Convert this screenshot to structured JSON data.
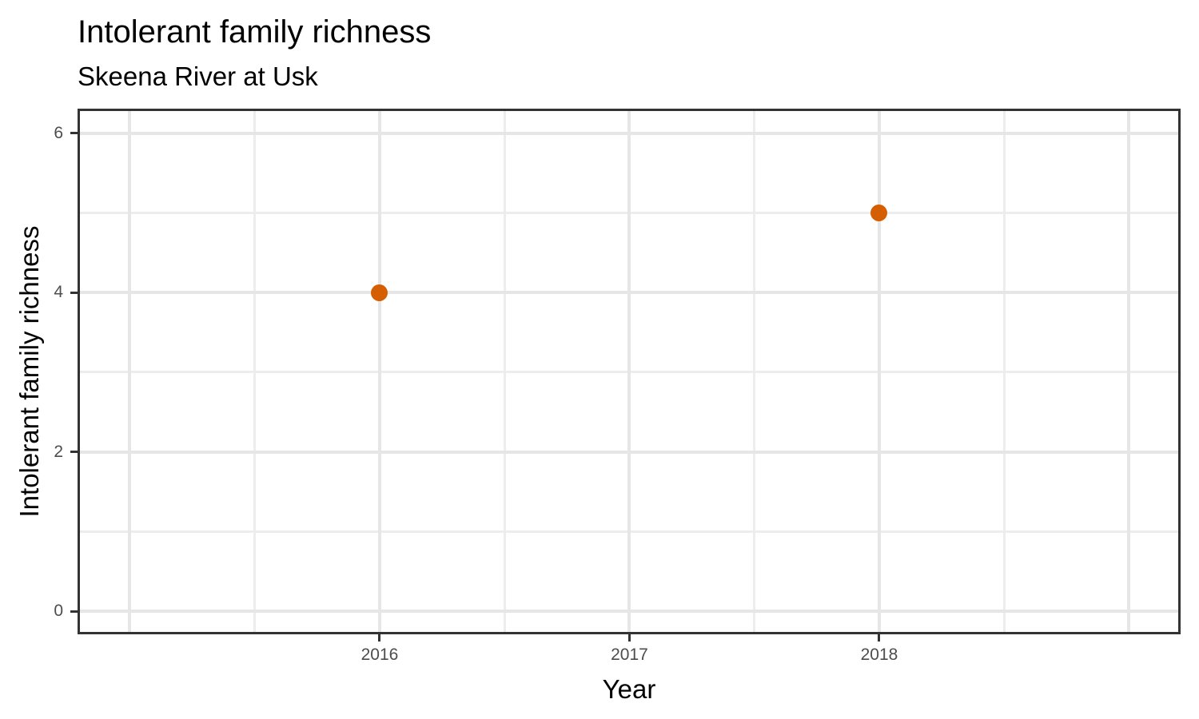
{
  "chart_data": {
    "type": "scatter",
    "title": "Intolerant family richness",
    "subtitle": "Skeena River at Usk",
    "xlabel": "Year",
    "ylabel": "Intolerant family richness",
    "points": [
      {
        "x": 2016,
        "y": 4
      },
      {
        "x": 2018,
        "y": 5
      }
    ],
    "x_ticks": [
      {
        "value": 2016,
        "label": "2016"
      },
      {
        "value": 2017,
        "label": "2017"
      },
      {
        "value": 2018,
        "label": "2018"
      }
    ],
    "y_ticks": [
      {
        "value": 0,
        "label": "0"
      },
      {
        "value": 2,
        "label": "2"
      },
      {
        "value": 4,
        "label": "4"
      },
      {
        "value": 6,
        "label": "6"
      }
    ],
    "x_range": [
      2014.8,
      2019.197
    ],
    "y_range": [
      -0.26,
      6.28
    ],
    "grid": {
      "x_major": [
        2015,
        2016,
        2017,
        2018,
        2019
      ],
      "x_minor": [
        2015.5,
        2016.5,
        2017.5,
        2018.5
      ],
      "y_major": [
        0,
        2,
        4,
        6
      ],
      "y_minor": [
        1,
        3,
        5
      ]
    },
    "legend_position": "none",
    "colors": {
      "point": "#D55E00",
      "grid_major": "#E6E6E6",
      "grid_minor": "#EDEDED",
      "panel_border": "#333333",
      "tick_mark": "#333333",
      "tick_label": "#4D4D4D",
      "title_text": "#000000",
      "background": "#FFFFFF"
    }
  }
}
